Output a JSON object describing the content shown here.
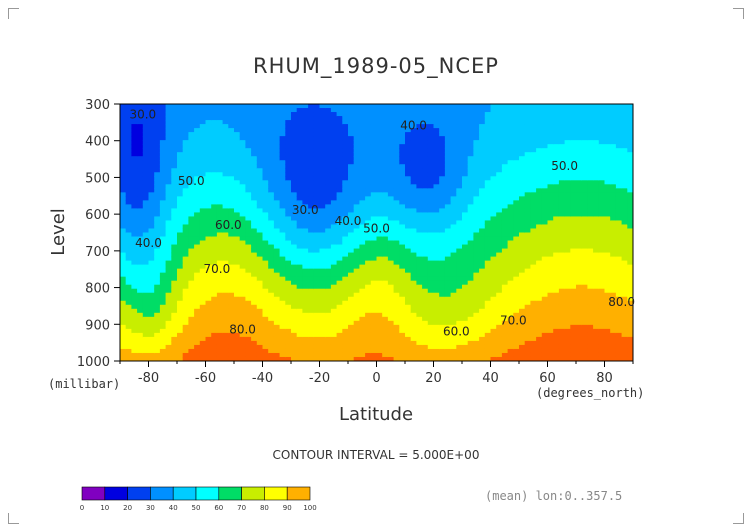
{
  "chart_data": {
    "type": "heatmap",
    "title": "RHUM_1989-05_NCEP",
    "xlabel": "Latitude",
    "ylabel": "Level",
    "y_unit": "(millibar)",
    "x_unit": "(degrees_north)",
    "xlim": [
      -90,
      90
    ],
    "ylim": [
      1000,
      300
    ],
    "x_ticks": [
      -80,
      -60,
      -40,
      -20,
      0,
      20,
      40,
      60,
      80
    ],
    "y_ticks": [
      300,
      400,
      500,
      600,
      700,
      800,
      900,
      1000
    ],
    "x_tick_labels": [
      "-80",
      "-60",
      "-40",
      "-20",
      "0",
      "20",
      "40",
      "60",
      "80"
    ],
    "y_tick_labels": [
      "300",
      "400",
      "500",
      "600",
      "700",
      "800",
      "900",
      "1000"
    ],
    "contour_interval_text": "CONTOUR INTERVAL = 5.000E+00",
    "footer_text": "(mean) lon:0..357.5",
    "colorbar": {
      "levels": [
        0,
        10,
        20,
        30,
        40,
        50,
        60,
        70,
        80,
        90,
        100
      ],
      "labels": [
        "0",
        "10",
        "20",
        "30",
        "40",
        "50",
        "60",
        "70",
        "80",
        "90",
        "100"
      ],
      "colors": [
        "#8000c0",
        "#0000e0",
        "#0040f0",
        "#0090ff",
        "#00ccff",
        "#00ffff",
        "#00dd66",
        "#c8ee00",
        "#ffff00",
        "#ffb000",
        "#ff6000",
        "#ff0000"
      ]
    },
    "contour_labels": [
      {
        "text": "30.0",
        "lat": -82,
        "lev": 340
      },
      {
        "text": "40.0",
        "lat": 13,
        "lev": 370
      },
      {
        "text": "50.0",
        "lat": 66,
        "lev": 480
      },
      {
        "text": "50.0",
        "lat": -65,
        "lev": 520
      },
      {
        "text": "60.0",
        "lat": -52,
        "lev": 640
      },
      {
        "text": "30.0",
        "lat": -25,
        "lev": 600
      },
      {
        "text": "40.0",
        "lat": -10,
        "lev": 630
      },
      {
        "text": "50.0",
        "lat": 0,
        "lev": 650
      },
      {
        "text": "40.0",
        "lat": -80,
        "lev": 690
      },
      {
        "text": "70.0",
        "lat": -56,
        "lev": 760
      },
      {
        "text": "80.0",
        "lat": -47,
        "lev": 925
      },
      {
        "text": "60.0",
        "lat": 28,
        "lev": 930
      },
      {
        "text": "70.0",
        "lat": 48,
        "lev": 900
      },
      {
        "text": "80.0",
        "lat": 86,
        "lev": 850
      }
    ]
  }
}
